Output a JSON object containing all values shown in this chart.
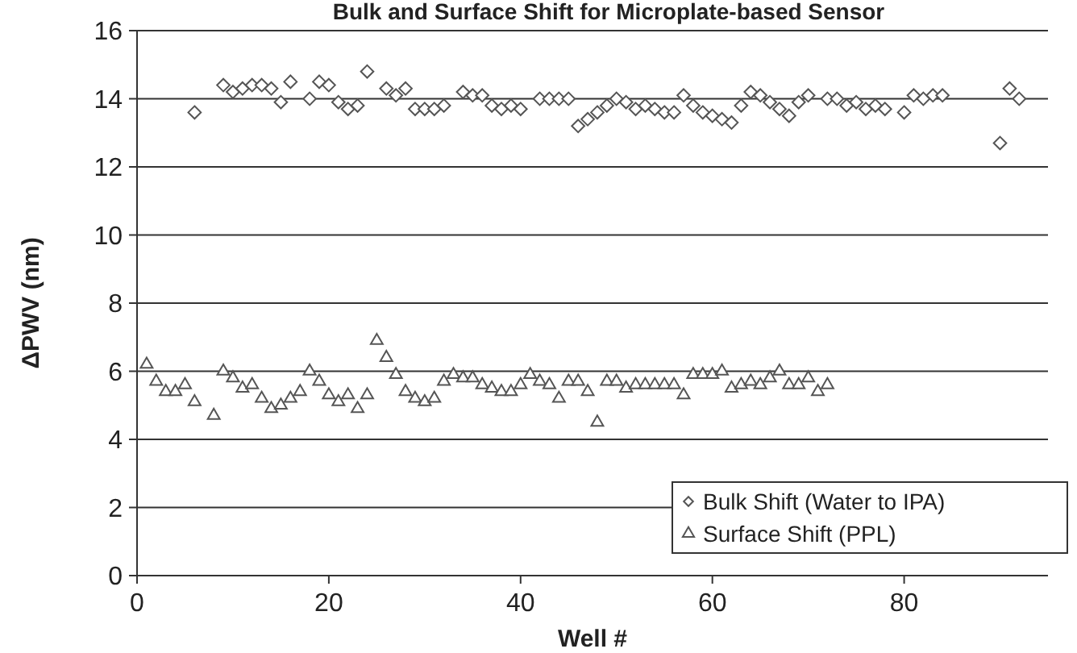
{
  "chart_data": {
    "type": "scatter",
    "title": "Bulk and Surface Shift for Microplate-based Sensor",
    "xlabel": "Well #",
    "ylabel": "ΔPWV (nm)",
    "xlim": [
      0,
      95
    ],
    "xticks": [
      0,
      20,
      40,
      60,
      80
    ],
    "ylim": [
      0,
      16
    ],
    "yticks": [
      0,
      2,
      4,
      6,
      8,
      10,
      12,
      14,
      16
    ],
    "grid": "y",
    "legend": "bottom right",
    "series": [
      {
        "name": "Bulk Shift (Water to IPA)",
        "color": "#555555",
        "marker": "diamond",
        "x": [
          6,
          9,
          10,
          11,
          12,
          13,
          14,
          15,
          16,
          18,
          19,
          20,
          21,
          22,
          23,
          24,
          26,
          27,
          28,
          29,
          30,
          31,
          32,
          34,
          35,
          36,
          37,
          38,
          39,
          40,
          42,
          43,
          44,
          45,
          46,
          47,
          48,
          49,
          50,
          51,
          52,
          53,
          54,
          55,
          56,
          57,
          58,
          59,
          60,
          61,
          62,
          63,
          64,
          65,
          66,
          67,
          68,
          69,
          70,
          72,
          73,
          74,
          75,
          76,
          77,
          78,
          80,
          81,
          82,
          83,
          84,
          90,
          91,
          92
        ],
        "values": [
          13.6,
          14.4,
          14.2,
          14.3,
          14.4,
          14.4,
          14.3,
          13.9,
          14.5,
          14.0,
          14.5,
          14.4,
          13.9,
          13.7,
          13.8,
          14.8,
          14.3,
          14.1,
          14.3,
          13.7,
          13.7,
          13.7,
          13.8,
          14.2,
          14.1,
          14.1,
          13.8,
          13.7,
          13.8,
          13.7,
          14.0,
          14.0,
          14.0,
          14.0,
          13.2,
          13.4,
          13.6,
          13.8,
          14.0,
          13.9,
          13.7,
          13.8,
          13.7,
          13.6,
          13.6,
          14.1,
          13.8,
          13.6,
          13.5,
          13.4,
          13.3,
          13.8,
          14.2,
          14.1,
          13.9,
          13.7,
          13.5,
          13.9,
          14.1,
          14.0,
          14.0,
          13.8,
          13.9,
          13.7,
          13.8,
          13.7,
          13.6,
          14.1,
          14.0,
          14.1,
          14.1,
          12.7,
          14.3,
          14.0
        ]
      },
      {
        "name": "Surface Shift (PPL)",
        "color": "#555555",
        "marker": "triangle",
        "x": [
          1,
          2,
          3,
          4,
          5,
          6,
          8,
          9,
          10,
          11,
          12,
          13,
          14,
          15,
          16,
          17,
          18,
          19,
          20,
          21,
          22,
          23,
          24,
          25,
          26,
          27,
          28,
          29,
          30,
          31,
          32,
          33,
          34,
          35,
          36,
          37,
          38,
          39,
          40,
          41,
          42,
          43,
          44,
          45,
          46,
          47,
          48,
          49,
          50,
          51,
          52,
          53,
          54,
          55,
          56,
          57,
          58,
          59,
          60,
          61,
          62,
          63,
          64,
          65,
          66,
          67,
          68,
          69,
          70,
          71,
          72
        ],
        "values": [
          6.2,
          5.7,
          5.4,
          5.4,
          5.6,
          5.1,
          4.7,
          6.0,
          5.8,
          5.5,
          5.6,
          5.2,
          4.9,
          5.0,
          5.2,
          5.4,
          6.0,
          5.7,
          5.3,
          5.1,
          5.3,
          4.9,
          5.3,
          6.9,
          6.4,
          5.9,
          5.4,
          5.2,
          5.1,
          5.2,
          5.7,
          5.9,
          5.8,
          5.8,
          5.6,
          5.5,
          5.4,
          5.4,
          5.6,
          5.9,
          5.7,
          5.6,
          5.2,
          5.7,
          5.7,
          5.4,
          4.5,
          5.7,
          5.7,
          5.5,
          5.6,
          5.6,
          5.6,
          5.6,
          5.6,
          5.3,
          5.9,
          5.9,
          5.9,
          6.0,
          5.5,
          5.6,
          5.7,
          5.6,
          5.8,
          6.0,
          5.6,
          5.6,
          5.8,
          5.4,
          5.6
        ]
      }
    ]
  }
}
